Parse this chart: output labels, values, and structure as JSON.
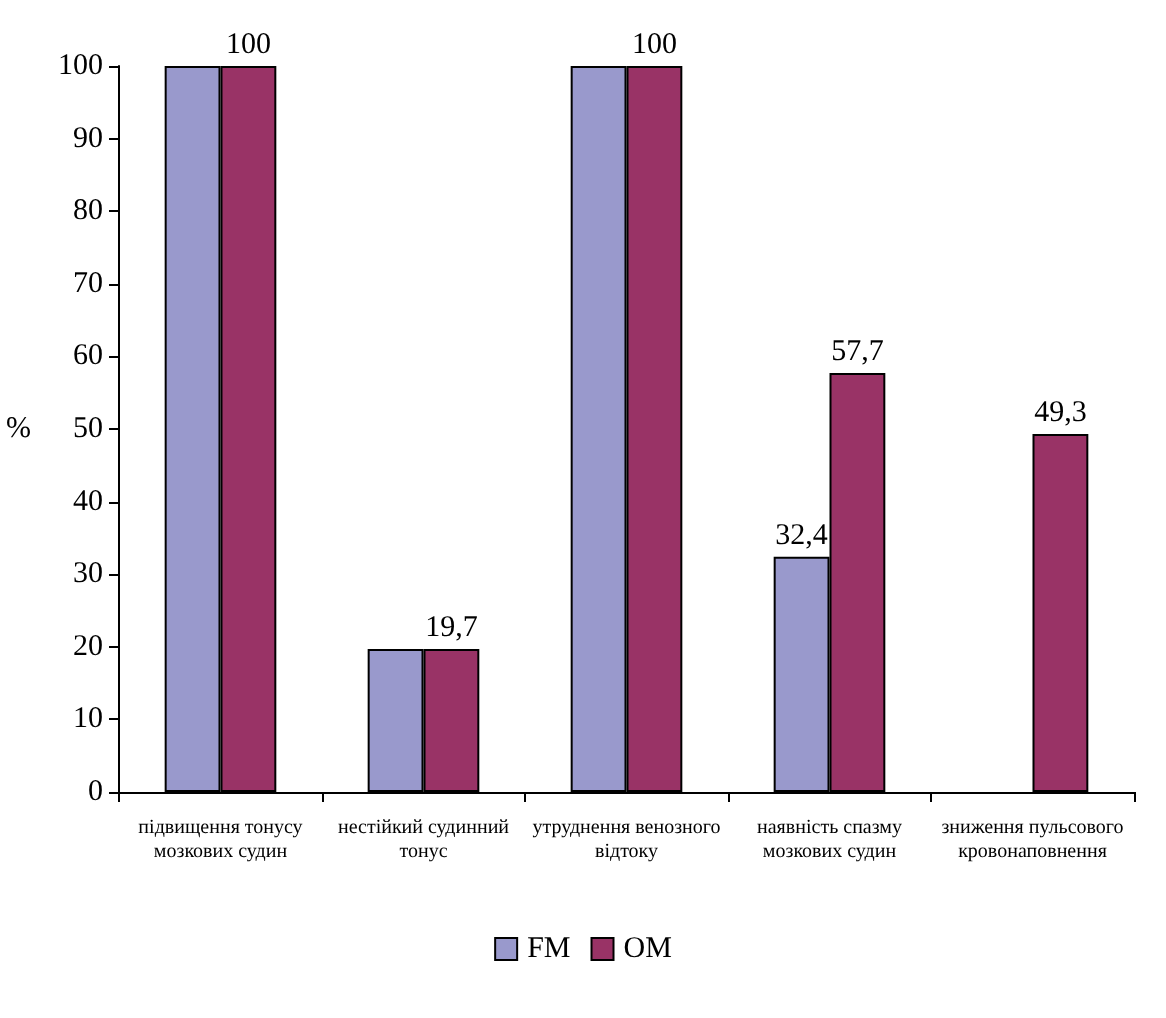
{
  "chart_data": {
    "type": "bar",
    "ylabel": "%",
    "categories": [
      "підвищення тонусу мозкових судин",
      "нестійкий судинний тонус",
      "утруднення венозного відтоку",
      "наявність спазму мозкових судин",
      "зниження пульсового кровонаповнення"
    ],
    "series": [
      {
        "name": "FM",
        "color": "#9999cc",
        "values": [
          100,
          19.7,
          100,
          32.4,
          null
        ],
        "value_labels": [
          null,
          null,
          null,
          "32,4",
          null
        ]
      },
      {
        "name": "OM",
        "color": "#993366",
        "values": [
          100,
          19.7,
          100,
          57.7,
          49.3
        ],
        "value_labels": [
          "100",
          "19,7",
          "100",
          "57,7",
          "49,3"
        ]
      }
    ],
    "ylim": [
      0,
      100
    ],
    "yticks": [
      0,
      10,
      20,
      30,
      40,
      50,
      60,
      70,
      80,
      90,
      100
    ],
    "grid": false,
    "legend": "bottom"
  }
}
